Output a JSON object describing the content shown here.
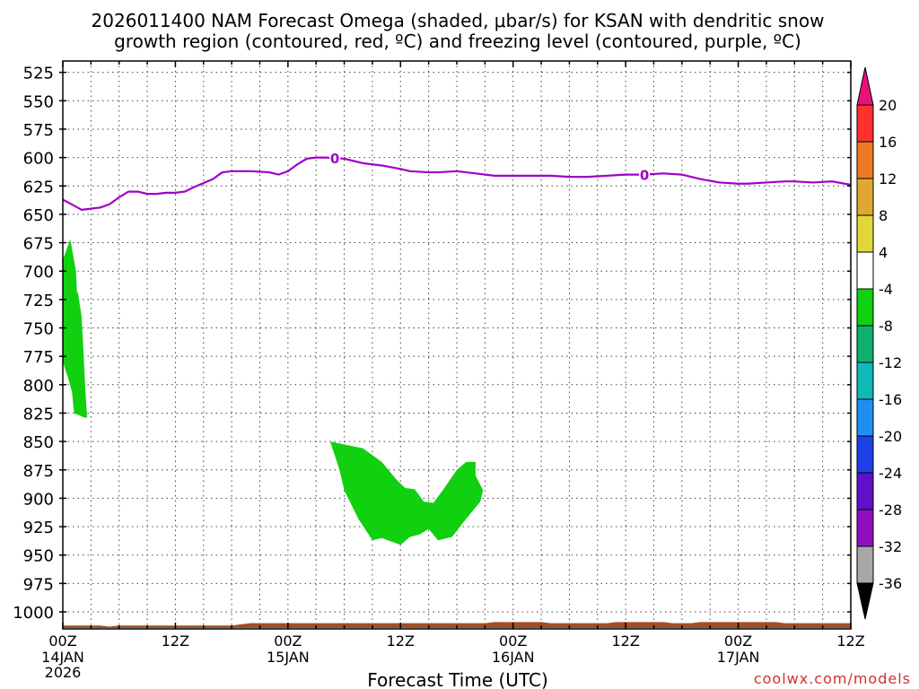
{
  "chart_data": {
    "type": "heatmap",
    "title_lines": [
      "2026011400 NAM Forecast Omega (shaded, μbar/s) for KSAN with dendritic snow",
      "growth region (contoured, red, ºC) and freezing level (contoured, purple, ºC)"
    ],
    "xlabel": "Forecast Time (UTC)",
    "credit": "coolwx.com/models",
    "y_axis": {
      "reversed": true,
      "range": [
        515,
        1015
      ],
      "ticks": [
        525,
        550,
        575,
        600,
        625,
        650,
        675,
        700,
        725,
        750,
        775,
        800,
        825,
        850,
        875,
        900,
        925,
        950,
        975,
        1000
      ]
    },
    "x_axis": {
      "range_hours": [
        0,
        84
      ],
      "ticks": [
        {
          "h": 0,
          "l1": "00Z",
          "l2": "14JAN",
          "l3": "2026"
        },
        {
          "h": 12,
          "l1": "12Z",
          "l2": "",
          "l3": ""
        },
        {
          "h": 24,
          "l1": "00Z",
          "l2": "15JAN",
          "l3": ""
        },
        {
          "h": 36,
          "l1": "12Z",
          "l2": "",
          "l3": ""
        },
        {
          "h": 48,
          "l1": "00Z",
          "l2": "16JAN",
          "l3": ""
        },
        {
          "h": 60,
          "l1": "12Z",
          "l2": "",
          "l3": ""
        },
        {
          "h": 72,
          "l1": "00Z",
          "l2": "17JAN",
          "l3": ""
        },
        {
          "h": 84,
          "l1": "12Z",
          "l2": "",
          "l3": ""
        }
      ]
    },
    "grid": true,
    "colorbar": {
      "labels": [
        "20",
        "16",
        "12",
        "8",
        "4",
        "-4",
        "-8",
        "-12",
        "-16",
        "-20",
        "-24",
        "-28",
        "-32",
        "-36"
      ],
      "top_arrow_color": "#e8127a",
      "bottom_arrow_color": "#000000",
      "colors": [
        "#ff3030",
        "#ec7a22",
        "#e0a830",
        "#e0d838",
        "#ffffff",
        "#10d010",
        "#10b070",
        "#10b8b8",
        "#2090f0",
        "#2040e8",
        "#6010c8",
        "#9010c0",
        "#a8a8a8"
      ]
    },
    "freezing_level": {
      "label": "0",
      "color": "#a000c8",
      "points": [
        [
          0,
          637
        ],
        [
          2,
          646
        ],
        [
          4,
          644
        ],
        [
          5,
          641
        ],
        [
          6,
          635
        ],
        [
          7,
          630
        ],
        [
          8,
          630
        ],
        [
          9,
          632
        ],
        [
          10,
          632
        ],
        [
          11,
          631
        ],
        [
          12,
          631
        ],
        [
          13,
          630
        ],
        [
          14,
          626
        ],
        [
          16,
          619
        ],
        [
          17,
          613
        ],
        [
          18,
          612
        ],
        [
          20,
          612
        ],
        [
          22,
          613
        ],
        [
          23,
          615
        ],
        [
          24,
          612
        ],
        [
          25,
          606
        ],
        [
          26,
          601
        ],
        [
          27,
          600
        ],
        [
          28,
          600
        ],
        [
          30,
          601
        ],
        [
          32,
          605
        ],
        [
          34,
          607
        ],
        [
          36,
          610
        ],
        [
          37,
          612
        ],
        [
          39,
          613
        ],
        [
          40,
          613
        ],
        [
          42,
          612
        ],
        [
          44,
          614
        ],
        [
          46,
          616
        ],
        [
          48,
          616
        ],
        [
          50,
          616
        ],
        [
          52,
          616
        ],
        [
          54,
          617
        ],
        [
          56,
          617
        ],
        [
          58,
          616
        ],
        [
          60,
          615
        ],
        [
          62,
          615
        ],
        [
          64,
          614
        ],
        [
          66,
          615
        ],
        [
          68,
          619
        ],
        [
          70,
          622
        ],
        [
          72,
          623
        ],
        [
          73,
          623
        ],
        [
          75,
          622
        ],
        [
          77,
          621
        ],
        [
          78,
          621
        ],
        [
          80,
          622
        ],
        [
          82,
          621
        ],
        [
          84,
          624
        ]
      ],
      "contour_label_hours": [
        29,
        62
      ]
    },
    "omega_regions": [
      {
        "value_bin": "-4 to -8",
        "color": "#10d010",
        "outline": [
          [
            0,
            690
          ],
          [
            0.8,
            672
          ],
          [
            1.4,
            700
          ],
          [
            1.6,
            735
          ],
          [
            1.5,
            770
          ],
          [
            1.2,
            795
          ],
          [
            1.0,
            807
          ],
          [
            0.6,
            795
          ],
          [
            0,
            780
          ]
        ]
      },
      {
        "value_bin": "-4 to -8",
        "color": "#10d010",
        "outline": [
          [
            1.1,
            728
          ],
          [
            1.6,
            718
          ],
          [
            2.0,
            740
          ],
          [
            2.2,
            770
          ],
          [
            2.4,
            805
          ],
          [
            2.6,
            829
          ],
          [
            2.3,
            829
          ],
          [
            1.2,
            825
          ],
          [
            0.9,
            800
          ],
          [
            0.6,
            785
          ],
          [
            0.8,
            750
          ],
          [
            0.9,
            725
          ]
        ]
      },
      {
        "value_bin": "-4 to -8",
        "color": "#10d010",
        "outline": [
          [
            28.5,
            850
          ],
          [
            32,
            856
          ],
          [
            34,
            868
          ],
          [
            35.5,
            883
          ],
          [
            36.5,
            891
          ],
          [
            37.5,
            892
          ],
          [
            38.5,
            903
          ],
          [
            39.5,
            904
          ],
          [
            40.5,
            893
          ],
          [
            42,
            875
          ],
          [
            43,
            868
          ],
          [
            44,
            868
          ],
          [
            44,
            880
          ],
          [
            44.8,
            893
          ],
          [
            44.5,
            903
          ],
          [
            43,
            918
          ],
          [
            41.5,
            934
          ],
          [
            40,
            937
          ],
          [
            39,
            927
          ],
          [
            38,
            932
          ],
          [
            37,
            934
          ],
          [
            36,
            941
          ],
          [
            34,
            935
          ],
          [
            33,
            937
          ],
          [
            31.5,
            918
          ],
          [
            30,
            893
          ],
          [
            29.5,
            875
          ]
        ]
      }
    ],
    "ground_terrain": {
      "color": "#a05028",
      "top_points": [
        [
          0,
          1012
        ],
        [
          4,
          1012
        ],
        [
          5,
          1013
        ],
        [
          6,
          1012
        ],
        [
          18,
          1012
        ],
        [
          19,
          1011
        ],
        [
          20,
          1010
        ],
        [
          45,
          1010
        ],
        [
          46,
          1009
        ],
        [
          51,
          1009
        ],
        [
          52,
          1010
        ],
        [
          58,
          1010
        ],
        [
          59,
          1009
        ],
        [
          64,
          1009
        ],
        [
          65,
          1010
        ],
        [
          67,
          1010
        ],
        [
          68,
          1009
        ],
        [
          76,
          1009
        ],
        [
          77,
          1010
        ],
        [
          84,
          1010
        ]
      ]
    }
  }
}
